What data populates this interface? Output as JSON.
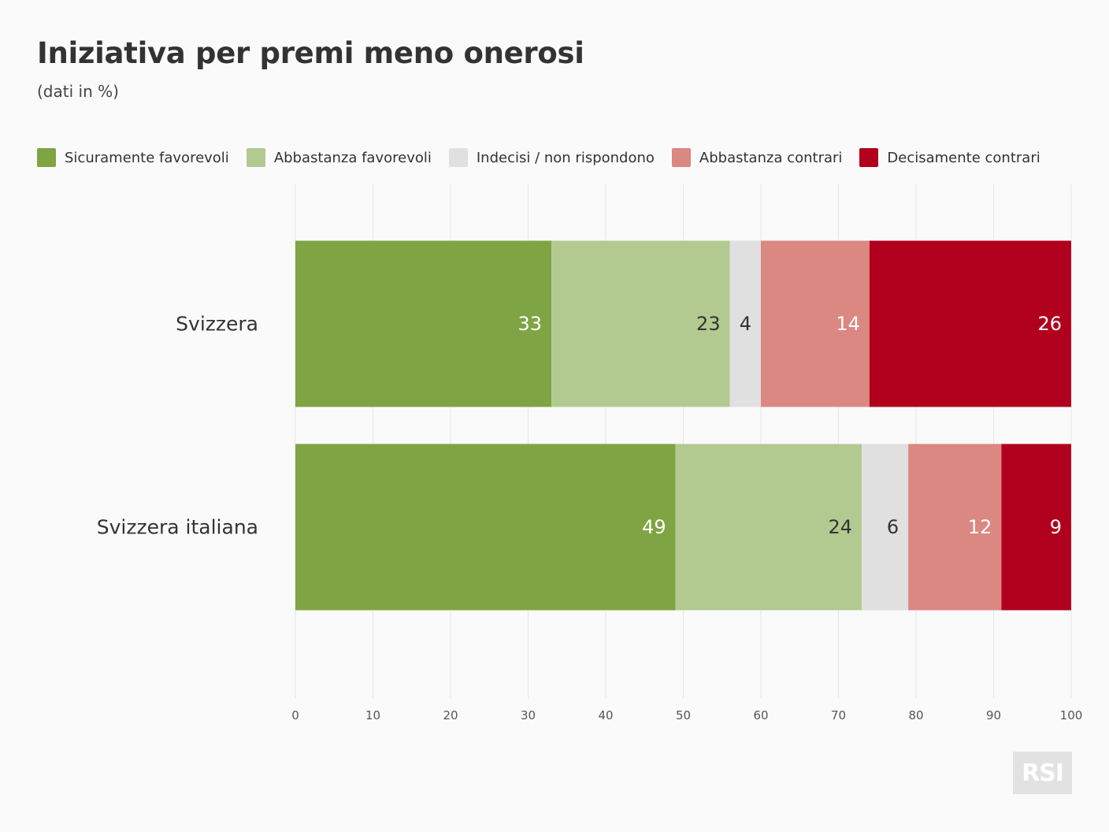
{
  "title": "Iniziativa per premi meno onerosi",
  "subtitle": "(dati in %)",
  "logo_text": "RSI",
  "chart_data": {
    "type": "bar",
    "orientation": "horizontal",
    "stacked": true,
    "title": "Iniziativa per premi meno onerosi",
    "subtitle": "(dati in %)",
    "categories": [
      "Svizzera",
      "Svizzera italiana"
    ],
    "series": [
      {
        "name": "Sicuramente favorevoli",
        "color": "#7fa443",
        "label_color": "#ffffff",
        "values": [
          33,
          49
        ]
      },
      {
        "name": "Abbastanza favorevoli",
        "color": "#b2ca8f",
        "label_color": "#333333",
        "values": [
          23,
          24
        ]
      },
      {
        "name": "Indecisi / non rispondono",
        "color": "#e0e0e0",
        "label_color": "#333333",
        "values": [
          4,
          6
        ]
      },
      {
        "name": "Abbastanza contrari",
        "color": "#db8782",
        "label_color": "#ffffff",
        "values": [
          14,
          12
        ]
      },
      {
        "name": "Decisamente contrari",
        "color": "#b0001d",
        "label_color": "#ffffff",
        "values": [
          26,
          9
        ]
      }
    ],
    "xlim": [
      0,
      100
    ],
    "xticks": [
      0,
      10,
      20,
      30,
      40,
      50,
      60,
      70,
      80,
      90,
      100
    ],
    "grid": true,
    "legend_position": "top"
  }
}
